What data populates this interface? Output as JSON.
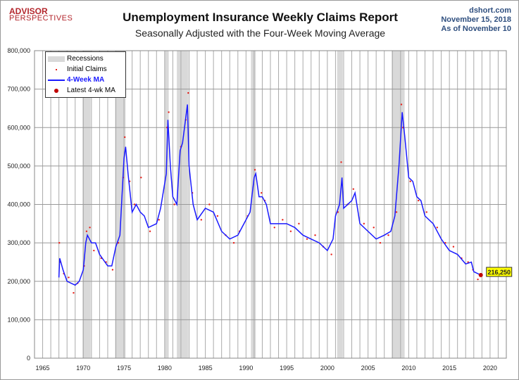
{
  "header": {
    "logo_line1": "ADVISOR",
    "logo_line2": "PERSPECTIVES",
    "title": "Unemployment Insurance Weekly Claims Report",
    "subtitle": "Seasonally Adjusted with the Four-Week Moving Average",
    "source": "dshort.com",
    "date": "November 15, 2018",
    "as_of": "As of November 10"
  },
  "chart_data": {
    "type": "line",
    "title": "Unemployment Insurance Weekly Claims Report",
    "subtitle": "Seasonally Adjusted with the Four-Week Moving Average",
    "xlim": [
      1964,
      2022
    ],
    "ylim": [
      0,
      800000
    ],
    "x_ticks": [
      "1965",
      "1970",
      "1975",
      "1980",
      "1985",
      "1990",
      "1995",
      "2000",
      "2005",
      "2010",
      "2015",
      "2020"
    ],
    "y_ticks": [
      "0",
      "100,000",
      "200,000",
      "300,000",
      "400,000",
      "500,000",
      "600,000",
      "700,000",
      "800,000"
    ],
    "grid": true,
    "legend_position": "top-left",
    "legend": [
      "Recessions",
      "Initial Claims",
      "4-Week MA",
      "Latest 4-wk MA"
    ],
    "colors": {
      "recession": "#d9d9d9",
      "initial_claims": "#e8221b",
      "ma": "#1a1aff",
      "latest": "#c00000",
      "label_bg": "#ffff00"
    },
    "recessions": [
      [
        1969.9,
        1970.9
      ],
      [
        1973.9,
        1975.2
      ],
      [
        1980.0,
        1980.5
      ],
      [
        1981.5,
        1982.9
      ],
      [
        1990.6,
        1991.2
      ],
      [
        2001.2,
        2001.9
      ],
      [
        2007.9,
        2009.5
      ]
    ],
    "series": [
      {
        "name": "4-Week MA",
        "type": "line",
        "x": [
          1967.0,
          1967.1,
          1967.5,
          1968,
          1969,
          1969.5,
          1970,
          1970.3,
          1970.5,
          1971,
          1971.5,
          1972,
          1973,
          1973.5,
          1974,
          1974.5,
          1975,
          1975.2,
          1975.5,
          1976,
          1976.5,
          1977,
          1977.5,
          1978,
          1979,
          1979.5,
          1980.2,
          1980.4,
          1980.7,
          1981,
          1981.5,
          1981.9,
          1982.2,
          1982.8,
          1983,
          1983.5,
          1984,
          1985,
          1986,
          1987,
          1988,
          1989,
          1989.5,
          1990,
          1990.5,
          1991,
          1991.2,
          1991.6,
          1992,
          1992.5,
          1993,
          1994,
          1995,
          1996,
          1997,
          1998,
          1999,
          2000,
          2000.7,
          2001,
          2001.5,
          2001.8,
          2002,
          2003,
          2003.4,
          2004,
          2005,
          2006,
          2007,
          2007.8,
          2008.3,
          2008.8,
          2009.2,
          2009.5,
          2010,
          2010.5,
          2011,
          2011.5,
          2012,
          2013,
          2014,
          2015,
          2016,
          2017,
          2017.7,
          2018,
          2018.86
        ],
        "values": [
          210000,
          260000,
          230000,
          200000,
          190000,
          200000,
          230000,
          300000,
          320000,
          300000,
          300000,
          270000,
          240000,
          240000,
          290000,
          320000,
          520000,
          550000,
          480000,
          380000,
          400000,
          380000,
          370000,
          340000,
          350000,
          390000,
          480000,
          620000,
          500000,
          420000,
          400000,
          540000,
          560000,
          660000,
          500000,
          400000,
          360000,
          390000,
          380000,
          330000,
          310000,
          320000,
          340000,
          360000,
          380000,
          470000,
          480000,
          420000,
          420000,
          400000,
          350000,
          350000,
          350000,
          340000,
          320000,
          310000,
          300000,
          280000,
          310000,
          370000,
          400000,
          470000,
          390000,
          410000,
          430000,
          350000,
          330000,
          310000,
          320000,
          330000,
          370000,
          500000,
          640000,
          580000,
          470000,
          460000,
          420000,
          410000,
          370000,
          350000,
          310000,
          280000,
          270000,
          245000,
          250000,
          225000,
          216250
        ]
      },
      {
        "name": "Initial Claims",
        "type": "scatter",
        "x": [
          1967.05,
          1967.2,
          1967.6,
          1968.2,
          1968.8,
          1969.3,
          1970.1,
          1970.4,
          1970.8,
          1971.3,
          1972.2,
          1972.8,
          1973.6,
          1974.3,
          1974.9,
          1975.1,
          1975.7,
          1976.3,
          1977.1,
          1978.2,
          1979.3,
          1980.3,
          1980.5,
          1981.2,
          1982.0,
          1982.6,
          1982.9,
          1983.4,
          1984.5,
          1985.5,
          1986.5,
          1987.5,
          1988.5,
          1989.2,
          1990.2,
          1991.1,
          1991.9,
          1992.3,
          1993.5,
          1994.5,
          1995.5,
          1996.5,
          1997.5,
          1998.5,
          1999.5,
          2000.5,
          2001.3,
          2001.7,
          2002.5,
          2003.2,
          2004.5,
          2005.7,
          2006.5,
          2007.5,
          2008.5,
          2009.1,
          2009.3,
          2010.2,
          2011.2,
          2012.2,
          2013.5,
          2014.5,
          2015.5,
          2016.5,
          2017.3,
          2017.9,
          2018.5
        ],
        "values": [
          300000,
          250000,
          220000,
          210000,
          170000,
          195000,
          240000,
          330000,
          340000,
          280000,
          260000,
          250000,
          230000,
          300000,
          470000,
          575000,
          460000,
          400000,
          470000,
          330000,
          360000,
          600000,
          640000,
          400000,
          550000,
          620000,
          690000,
          430000,
          360000,
          400000,
          370000,
          320000,
          300000,
          330000,
          370000,
          490000,
          430000,
          410000,
          340000,
          360000,
          330000,
          350000,
          310000,
          320000,
          290000,
          270000,
          380000,
          510000,
          400000,
          440000,
          350000,
          340000,
          300000,
          320000,
          380000,
          660000,
          600000,
          460000,
          410000,
          380000,
          340000,
          300000,
          290000,
          260000,
          250000,
          230000,
          205000
        ]
      }
    ],
    "latest_label": "216,250"
  }
}
